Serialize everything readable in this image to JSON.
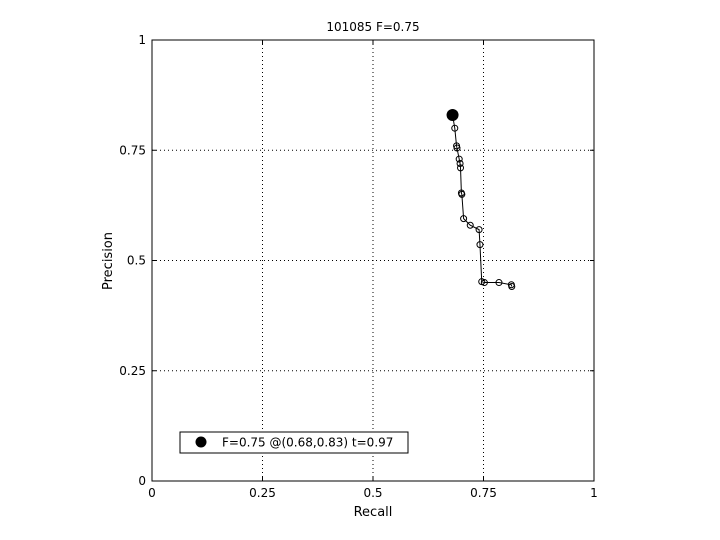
{
  "chart_data": {
    "type": "line",
    "title": "101085 F=0.75",
    "xlabel": "Recall",
    "ylabel": "Precision",
    "xlim": [
      0,
      1
    ],
    "ylim": [
      0,
      1
    ],
    "grid": true,
    "grid_style": "dotted",
    "legend_position": "bottom-left",
    "xticks": [
      {
        "value": 0,
        "label": "0"
      },
      {
        "value": 0.25,
        "label": "0.25"
      },
      {
        "value": 0.5,
        "label": "0.5"
      },
      {
        "value": 0.75,
        "label": "0.75"
      },
      {
        "value": 1,
        "label": "1"
      }
    ],
    "yticks": [
      {
        "value": 0,
        "label": "0"
      },
      {
        "value": 0.25,
        "label": "0.25"
      },
      {
        "value": 0.5,
        "label": "0.5"
      },
      {
        "value": 0.75,
        "label": "0.75"
      },
      {
        "value": 1,
        "label": "1"
      }
    ],
    "series": [
      {
        "marker": "open-circle",
        "color": "#000000",
        "points": [
          [
            0.685,
            0.8
          ],
          [
            0.689,
            0.76
          ],
          [
            0.69,
            0.755
          ],
          [
            0.695,
            0.73
          ],
          [
            0.697,
            0.72
          ],
          [
            0.698,
            0.71
          ],
          [
            0.7,
            0.653
          ],
          [
            0.701,
            0.65
          ],
          [
            0.705,
            0.595
          ],
          [
            0.72,
            0.58
          ],
          [
            0.74,
            0.57
          ],
          [
            0.742,
            0.536
          ],
          [
            0.746,
            0.452
          ],
          [
            0.752,
            0.45
          ],
          [
            0.785,
            0.45
          ],
          [
            0.813,
            0.445
          ],
          [
            0.814,
            0.441
          ]
        ]
      }
    ],
    "best_point": {
      "recall": 0.68,
      "precision": 0.83,
      "marker": "filled-circle",
      "legend_label": "F=0.75 @(0.68,0.83) t=0.97"
    }
  }
}
